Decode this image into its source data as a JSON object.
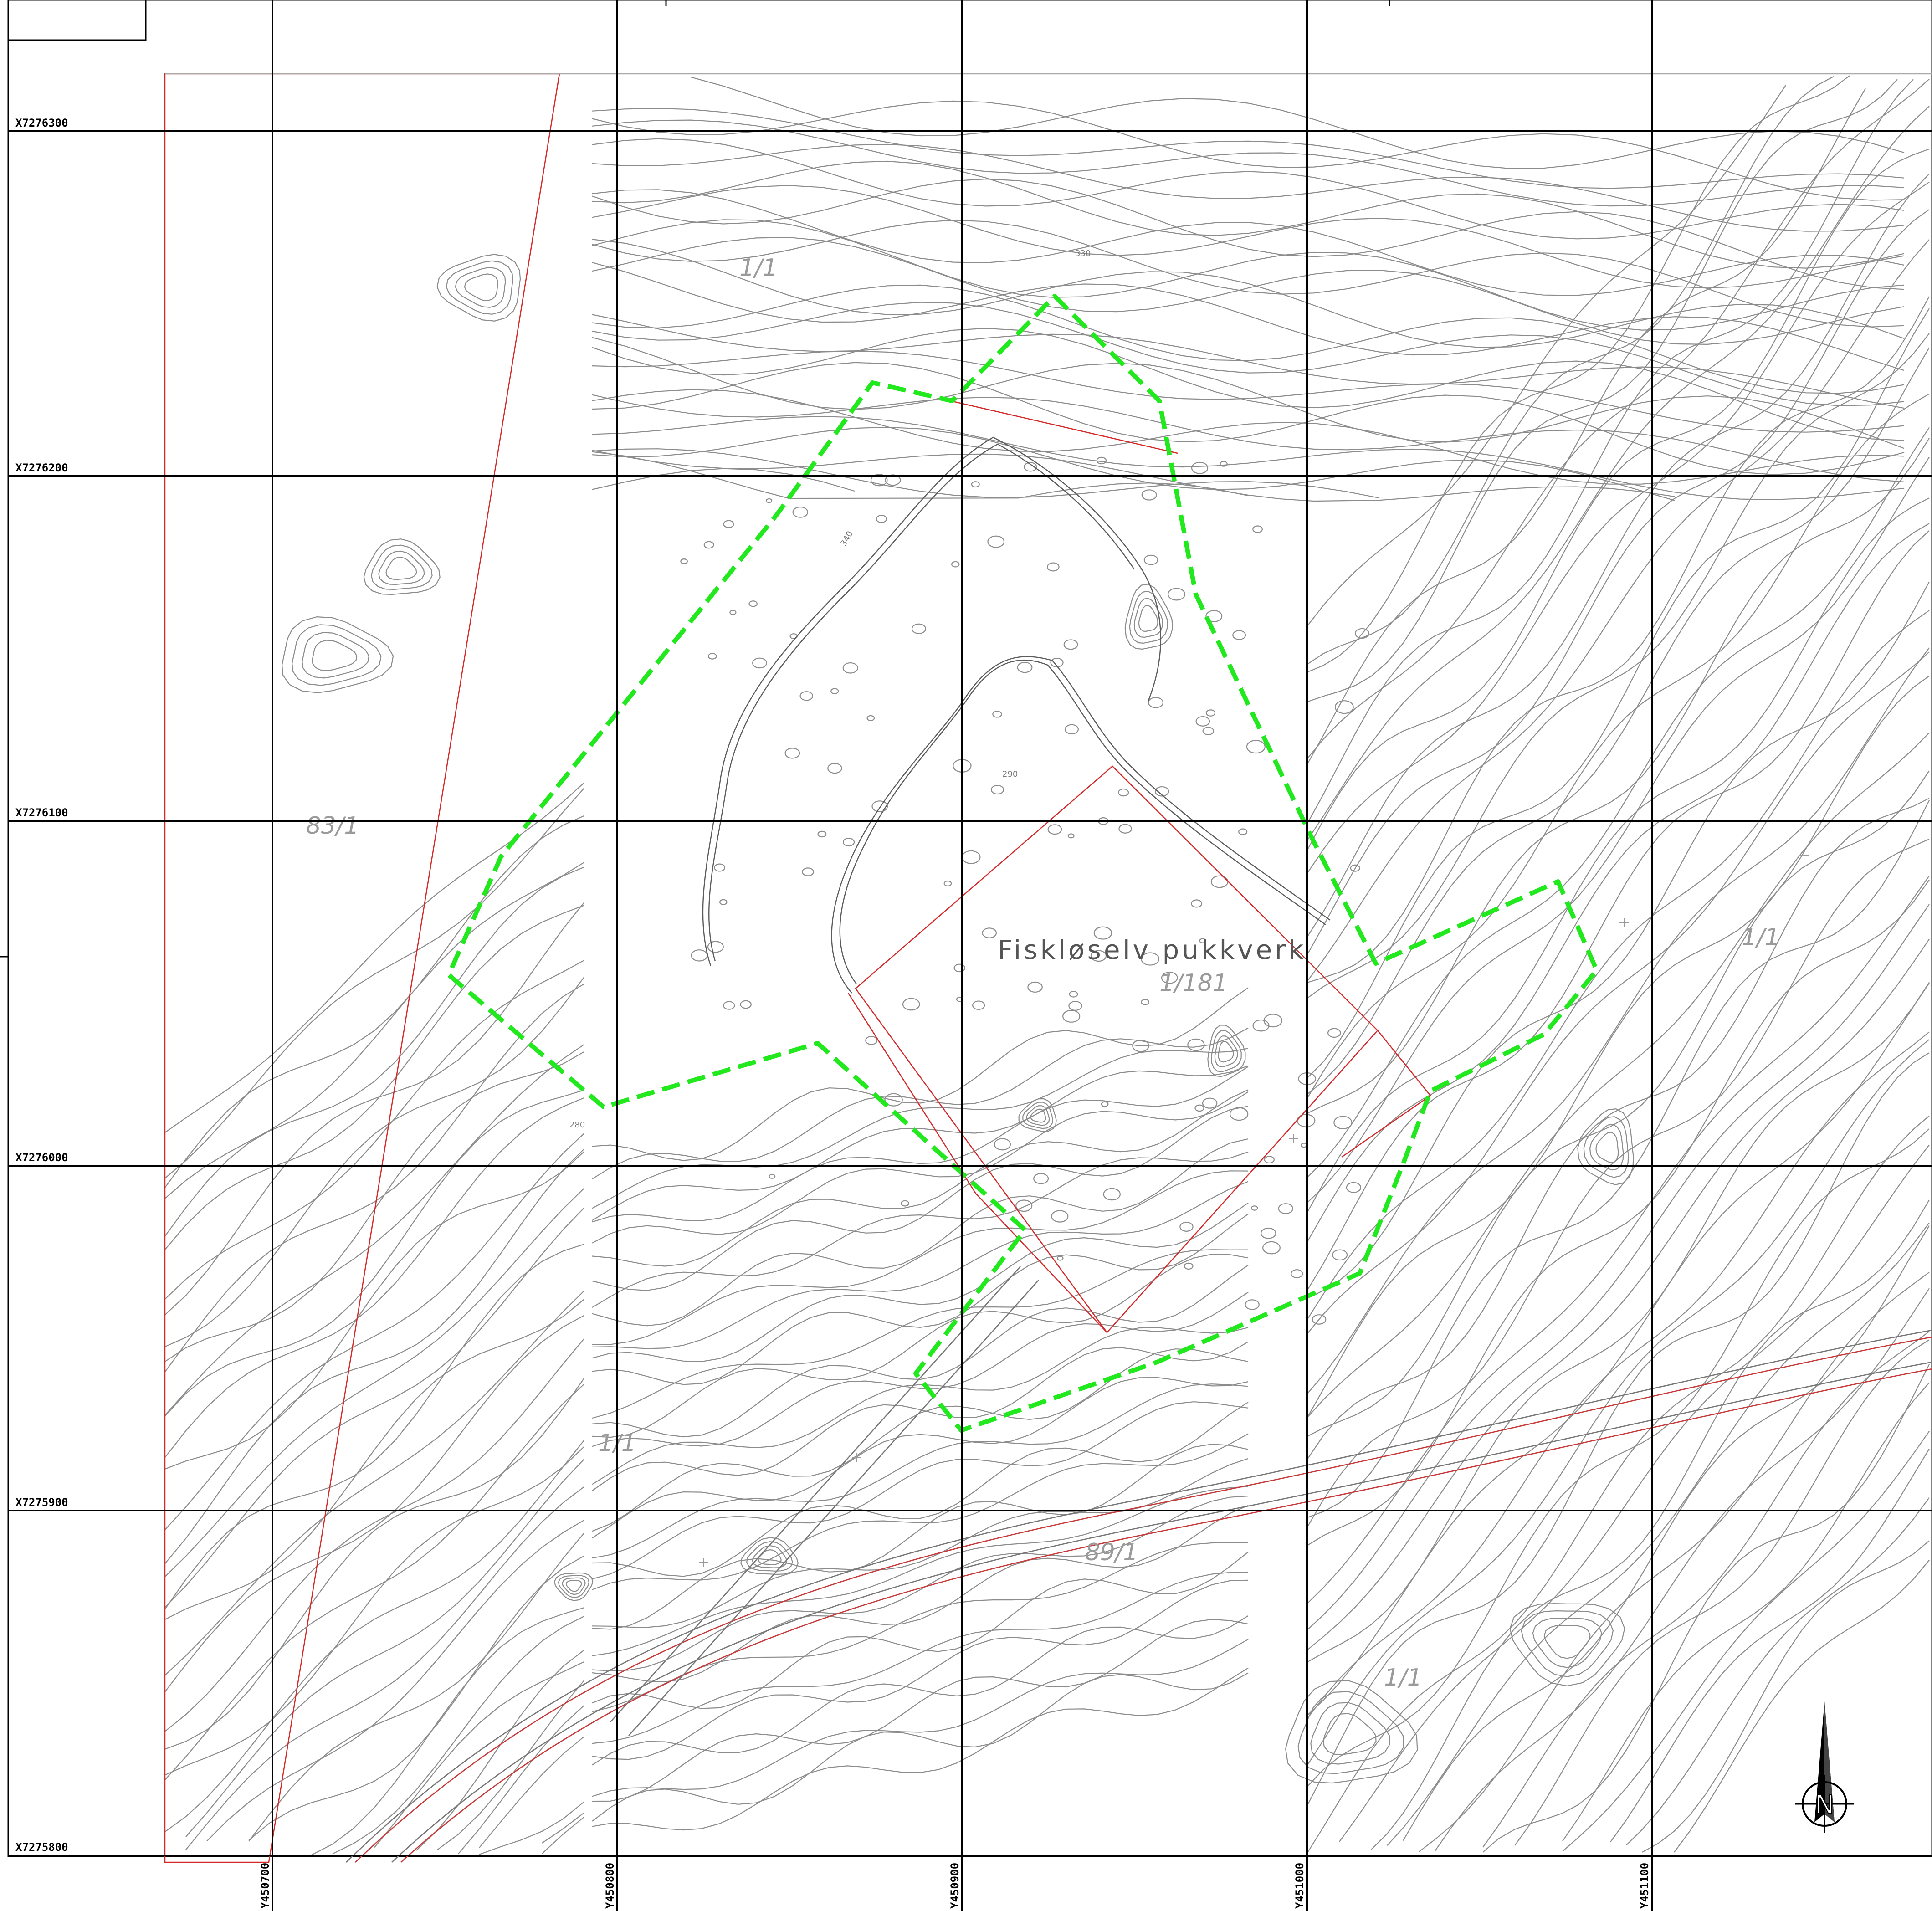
{
  "map": {
    "title": "Fiskløselv pukkverk",
    "colors": {
      "grid": "#000000",
      "contours": "#8c8c8c",
      "property_boundary": "#d42a2a",
      "regulation_boundary": "#22e81e",
      "text": "#9a9a9a"
    },
    "grid": {
      "x_labels": [
        "X7276300",
        "X7276200",
        "X7276100",
        "X7276000",
        "X7275900",
        "X7275800"
      ],
      "y_labels": [
        "Y450700",
        "Y450800",
        "Y450900",
        "Y451000",
        "Y451100"
      ]
    },
    "parcels": {
      "p1": "1/1",
      "p2": "83/1",
      "p3": "1/181",
      "p4": "1/1",
      "p5": "1/1",
      "p6": "89/1",
      "p7": "1/1"
    },
    "elevation_labels": {
      "e1": "330",
      "e2": "340",
      "e3": "290",
      "e4": "280"
    },
    "north_arrow": {
      "letter": "N",
      "icon": "north-arrow-icon"
    }
  }
}
